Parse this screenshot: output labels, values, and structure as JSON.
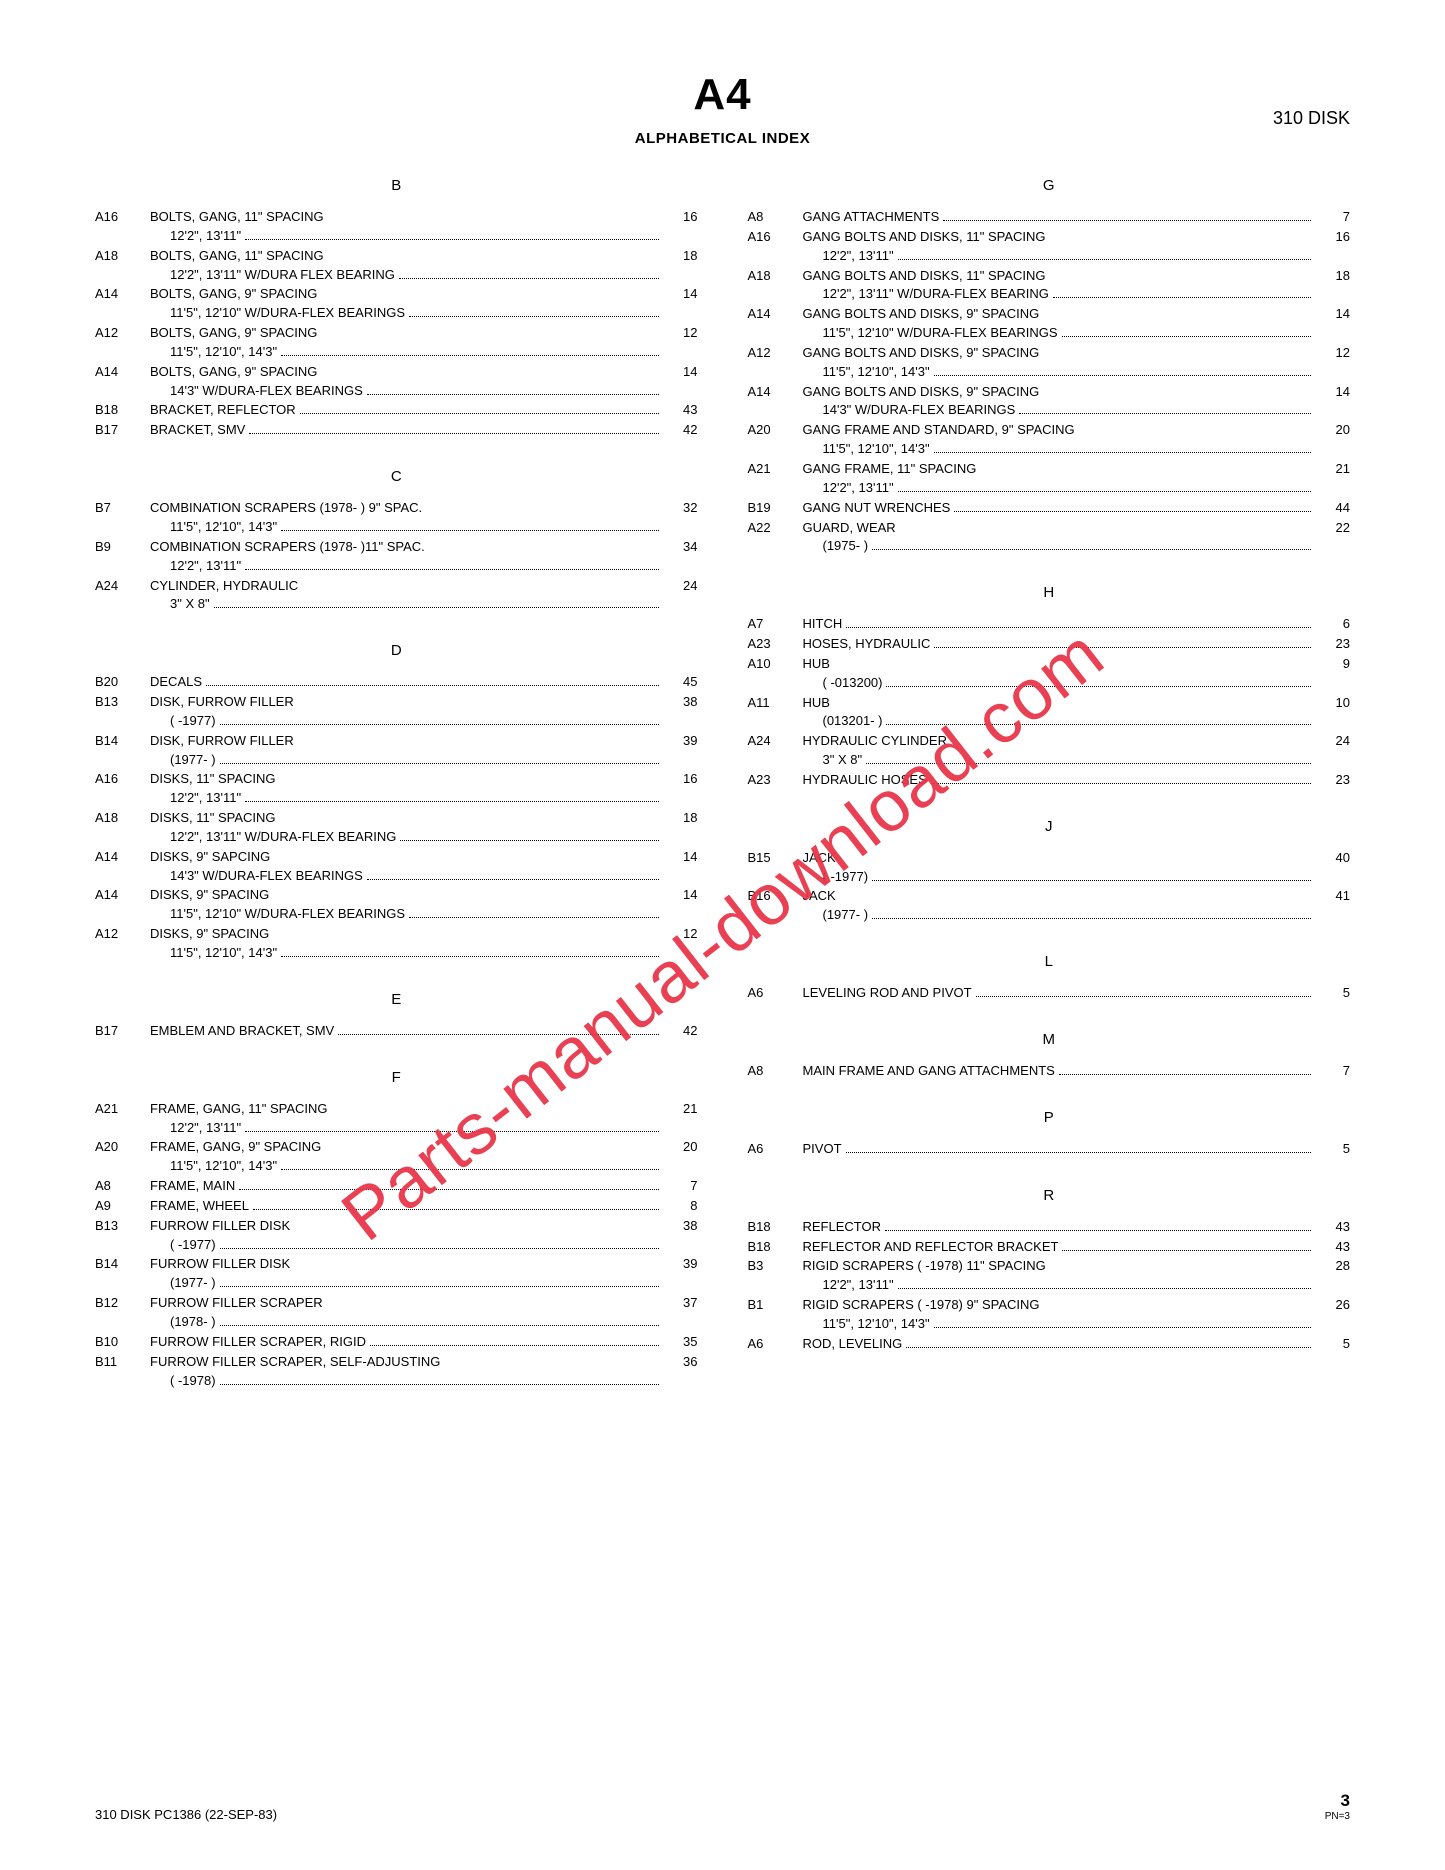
{
  "pageTitle": "A4",
  "headerRight": "310 DISK",
  "subtitle": "ALPHABETICAL INDEX",
  "watermark": "Parts-manual-download.com",
  "footer": {
    "left": "310 DISK   PC1386    (22-SEP-83)",
    "pageNum": "3",
    "pn": "PN=3"
  },
  "leftSections": [
    {
      "letter": "B",
      "entries": [
        {
          "ref": "A16",
          "l1": "BOLTS, GANG, 11\" SPACING",
          "l2": "12'2\", 13'11\"",
          "page": "16"
        },
        {
          "ref": "A18",
          "l1": "BOLTS, GANG, 11\" SPACING",
          "l2": "12'2\", 13'11\" W/DURA FLEX BEARING",
          "page": "18"
        },
        {
          "ref": "A14",
          "l1": "BOLTS, GANG, 9\" SPACING",
          "l2": "11'5\", 12'10\" W/DURA-FLEX BEARINGS",
          "page": "14"
        },
        {
          "ref": "A12",
          "l1": "BOLTS, GANG, 9\" SPACING",
          "l2": "11'5\", 12'10\", 14'3\"",
          "page": "12"
        },
        {
          "ref": "A14",
          "l1": "BOLTS, GANG, 9\" SPACING",
          "l2": "14'3\" W/DURA-FLEX BEARINGS",
          "page": "14"
        },
        {
          "ref": "B18",
          "single": "BRACKET, REFLECTOR",
          "page": "43"
        },
        {
          "ref": "B17",
          "single": "BRACKET, SMV",
          "page": "42"
        }
      ]
    },
    {
      "letter": "C",
      "entries": [
        {
          "ref": "B7",
          "l1": "COMBINATION SCRAPERS (1978-   ) 9\" SPAC.",
          "l2": "11'5\", 12'10\", 14'3\"",
          "page": "32"
        },
        {
          "ref": "B9",
          "l1": "COMBINATION SCRAPERS (1978-   )11\" SPAC.",
          "l2": "12'2\", 13'11\"",
          "page": "34"
        },
        {
          "ref": "A24",
          "l1": "CYLINDER, HYDRAULIC",
          "l2": "3\" X 8\"",
          "page": "24"
        }
      ]
    },
    {
      "letter": "D",
      "entries": [
        {
          "ref": "B20",
          "single": "DECALS",
          "page": "45"
        },
        {
          "ref": "B13",
          "l1": "DISK, FURROW FILLER",
          "l2": "(      -1977)",
          "page": "38"
        },
        {
          "ref": "B14",
          "l1": "DISK, FURROW FILLER",
          "l2": "(1977-      )",
          "page": "39"
        },
        {
          "ref": "A16",
          "l1": "DISKS, 11\" SPACING",
          "l2": "12'2\", 13'11\"",
          "page": "16"
        },
        {
          "ref": "A18",
          "l1": "DISKS, 11\" SPACING",
          "l2": "12'2\", 13'11\" W/DURA-FLEX BEARING",
          "page": "18"
        },
        {
          "ref": "A14",
          "l1": "DISKS, 9\" SAPCING",
          "l2": "14'3\" W/DURA-FLEX BEARINGS",
          "page": "14"
        },
        {
          "ref": "A14",
          "l1": "DISKS, 9\" SPACING",
          "l2": "11'5\", 12'10\" W/DURA-FLEX BEARINGS",
          "page": "14"
        },
        {
          "ref": "A12",
          "l1": "DISKS, 9\" SPACING",
          "l2": "11'5\", 12'10\", 14'3\"",
          "page": "12"
        }
      ]
    },
    {
      "letter": "E",
      "entries": [
        {
          "ref": "B17",
          "single": "EMBLEM AND BRACKET, SMV",
          "page": "42"
        }
      ]
    },
    {
      "letter": "F",
      "entries": [
        {
          "ref": "A21",
          "l1": "FRAME, GANG, 11\" SPACING",
          "l2": "12'2\", 13'11\"",
          "page": "21"
        },
        {
          "ref": "A20",
          "l1": "FRAME, GANG, 9\" SPACING",
          "l2": "11'5\", 12'10\", 14'3\"",
          "page": "20"
        },
        {
          "ref": "A8",
          "single": "FRAME, MAIN",
          "page": "7"
        },
        {
          "ref": "A9",
          "single": "FRAME, WHEEL",
          "page": "8"
        },
        {
          "ref": "B13",
          "l1": "FURROW FILLER DISK",
          "l2": "(      -1977)",
          "page": "38"
        },
        {
          "ref": "B14",
          "l1": "FURROW FILLER DISK",
          "l2": "(1977-      )",
          "page": "39"
        },
        {
          "ref": "B12",
          "l1": "FURROW FILLER SCRAPER",
          "l2": "(1978-      )",
          "page": "37"
        },
        {
          "ref": "B10",
          "single": "FURROW FILLER SCRAPER, RIGID",
          "page": "35"
        },
        {
          "ref": "B11",
          "l1": "FURROW FILLER SCRAPER, SELF-ADJUSTING",
          "l2": "(      -1978)",
          "page": "36"
        }
      ]
    }
  ],
  "rightSections": [
    {
      "letter": "G",
      "entries": [
        {
          "ref": "A8",
          "single": "GANG ATTACHMENTS",
          "page": "7"
        },
        {
          "ref": "A16",
          "l1": "GANG BOLTS AND DISKS, 11\" SPACING",
          "l2": "12'2\", 13'11\"",
          "page": "16"
        },
        {
          "ref": "A18",
          "l1": "GANG BOLTS AND DISKS, 11\" SPACING",
          "l2": "12'2\", 13'11\" W/DURA-FLEX BEARING",
          "page": "18"
        },
        {
          "ref": "A14",
          "l1": "GANG BOLTS AND DISKS, 9\" SPACING",
          "l2": "11'5\", 12'10\" W/DURA-FLEX BEARINGS",
          "page": "14"
        },
        {
          "ref": "A12",
          "l1": "GANG BOLTS AND DISKS, 9\" SPACING",
          "l2": "11'5\", 12'10\", 14'3\"",
          "page": "12"
        },
        {
          "ref": "A14",
          "l1": "GANG BOLTS AND DISKS, 9\" SPACING",
          "l2": "14'3\" W/DURA-FLEX BEARINGS",
          "page": "14"
        },
        {
          "ref": "A20",
          "l1": "GANG FRAME AND STANDARD, 9\" SPACING",
          "l2": "11'5\", 12'10\", 14'3\"",
          "page": "20"
        },
        {
          "ref": "A21",
          "l1": "GANG FRAME, 11\" SPACING",
          "l2": "12'2\", 13'11\"",
          "page": "21"
        },
        {
          "ref": "B19",
          "single": "GANG NUT WRENCHES",
          "page": "44"
        },
        {
          "ref": "A22",
          "l1": "GUARD, WEAR",
          "l2": "(1975-      )",
          "page": "22"
        }
      ]
    },
    {
      "letter": "H",
      "entries": [
        {
          "ref": "A7",
          "single": "HITCH",
          "page": "6"
        },
        {
          "ref": "A23",
          "single": "HOSES, HYDRAULIC",
          "page": "23"
        },
        {
          "ref": "A10",
          "l1": "HUB",
          "l2": "(      -013200)",
          "page": "9"
        },
        {
          "ref": "A11",
          "l1": "HUB",
          "l2": "(013201-      )",
          "page": "10"
        },
        {
          "ref": "A24",
          "l1": "HYDRAULIC CYLINDER",
          "l2": "3\" X 8\"",
          "page": "24"
        },
        {
          "ref": "A23",
          "single": "HYDRAULIC HOSES",
          "page": "23"
        }
      ]
    },
    {
      "letter": "J",
      "entries": [
        {
          "ref": "B15",
          "l1": "JACK",
          "l2": "(      -1977)",
          "page": "40"
        },
        {
          "ref": "B16",
          "l1": "JACK",
          "l2": "(1977-      )",
          "page": "41"
        }
      ]
    },
    {
      "letter": "L",
      "entries": [
        {
          "ref": "A6",
          "single": "LEVELING ROD AND PIVOT",
          "page": "5"
        }
      ]
    },
    {
      "letter": "M",
      "entries": [
        {
          "ref": "A8",
          "single": "MAIN FRAME AND GANG ATTACHMENTS",
          "page": "7"
        }
      ]
    },
    {
      "letter": "P",
      "entries": [
        {
          "ref": "A6",
          "single": "PIVOT",
          "page": "5"
        }
      ]
    },
    {
      "letter": "R",
      "entries": [
        {
          "ref": "B18",
          "single": "REFLECTOR",
          "page": "43"
        },
        {
          "ref": "B18",
          "single": "REFLECTOR AND REFLECTOR BRACKET",
          "page": "43"
        },
        {
          "ref": "B3",
          "l1": "RIGID SCRAPERS (      -1978) 11\" SPACING",
          "l2": "12'2\", 13'11\"",
          "page": "28"
        },
        {
          "ref": "B1",
          "l1": "RIGID SCRAPERS (      -1978) 9\" SPACING",
          "l2": "11'5\", 12'10\", 14'3\"",
          "page": "26"
        },
        {
          "ref": "A6",
          "single": "ROD, LEVELING",
          "page": "5"
        }
      ]
    }
  ]
}
